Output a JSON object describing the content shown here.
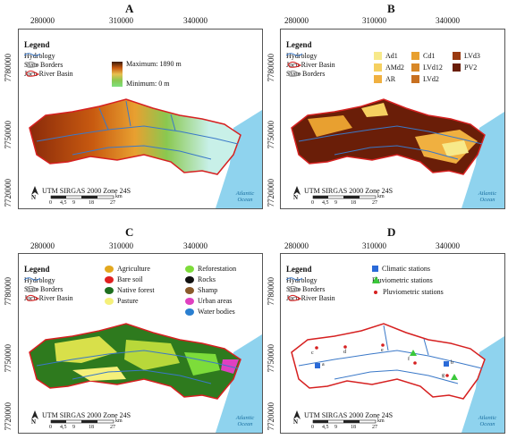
{
  "panels": {
    "a": {
      "letter": "A",
      "legend_title": "Legend",
      "items": [
        "Hydrology",
        "State Borders",
        "Jucu River Basin"
      ],
      "max_label": "Maximum: 1890 m",
      "min_label": "Minimum: 0 m"
    },
    "b": {
      "letter": "B",
      "legend_title": "Legend",
      "items": [
        "Hydrology",
        "Jucu River Basin",
        "State Borders"
      ],
      "soils": [
        {
          "label": "Ad1",
          "color": "#f7e98a"
        },
        {
          "label": "AMd2",
          "color": "#f5d060"
        },
        {
          "label": "AR",
          "color": "#f0b040"
        },
        {
          "label": "Cd1",
          "color": "#e8a030"
        },
        {
          "label": "LVd12",
          "color": "#d88828"
        },
        {
          "label": "LVd2",
          "color": "#c87020"
        },
        {
          "label": "LVd3",
          "color": "#9a3a10"
        },
        {
          "label": "PV2",
          "color": "#6a1e08"
        }
      ]
    },
    "c": {
      "letter": "C",
      "legend_title": "Legend",
      "items": [
        "Hydrology",
        "State Borders",
        "Jucu River Basin"
      ],
      "landuse": [
        {
          "label": "Agriculture",
          "color": "#e3a81e",
          "icon": "agriculture-icon"
        },
        {
          "label": "Bare soil",
          "color": "#e02020",
          "icon": "bare-soil-icon"
        },
        {
          "label": "Native forest",
          "color": "#1f6f1f",
          "icon": "forest-icon"
        },
        {
          "label": "Pasture",
          "color": "#f5f07a",
          "icon": "pasture-icon"
        },
        {
          "label": "Reforestation",
          "color": "#7ddc3a",
          "icon": "reforestation-icon"
        },
        {
          "label": "Rocks",
          "color": "#111111",
          "icon": "rocks-icon"
        },
        {
          "label": "Shamp",
          "color": "#8a5a2a",
          "icon": "swamp-icon"
        },
        {
          "label": "Urban areas",
          "color": "#e040c0",
          "icon": "urban-icon"
        },
        {
          "label": "Water bodies",
          "color": "#2a7fd0",
          "icon": "water-icon"
        }
      ]
    },
    "d": {
      "letter": "D",
      "legend_title": "Legend",
      "items": [
        "Hydrology",
        "State Borders",
        "Jucu River Basin"
      ],
      "stations": [
        "Climatic stations",
        "Fluviometric stations",
        "Pluviometric stations"
      ],
      "point_labels": [
        "a",
        "b",
        "c",
        "d",
        "e",
        "f",
        "g"
      ]
    }
  },
  "common": {
    "x_ticks": [
      "280000",
      "310000",
      "340000"
    ],
    "y_ticks": [
      "7780000",
      "7750000",
      "7720000"
    ],
    "utm_label": "UTM SIRGAS 2000 Zone 24S",
    "scale_unit": "km",
    "scale_ticks": [
      "0",
      "4,5",
      "9",
      "18",
      "27"
    ],
    "ocean_label": "Atlantic Ocean",
    "north": "N"
  },
  "colors": {
    "ocean": "#8fd3ee",
    "basin_border": "#d62020",
    "hydrology": "#3a78c8",
    "state_border": "#888888"
  }
}
